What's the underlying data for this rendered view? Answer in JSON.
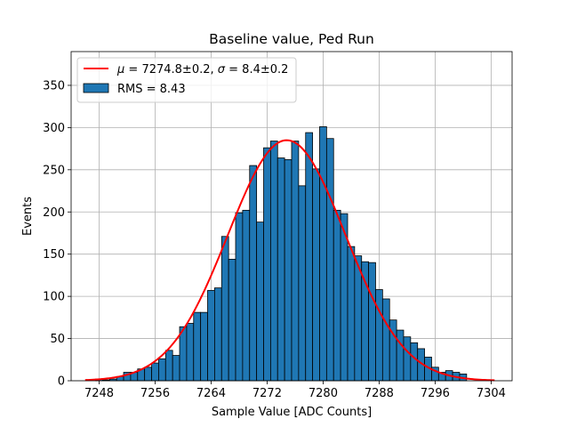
{
  "chart_data": {
    "type": "bar",
    "title": "Baseline value, Ped Run",
    "xlabel": "Sample Value [ADC Counts]",
    "ylabel": "Events",
    "xlim": [
      7244,
      7307
    ],
    "ylim": [
      0,
      390
    ],
    "xticks": [
      7248,
      7256,
      7264,
      7272,
      7280,
      7288,
      7296,
      7304
    ],
    "yticks": [
      0,
      50,
      100,
      150,
      200,
      250,
      300,
      350
    ],
    "grid": true,
    "legend_position": "top-left",
    "bin_width": 1,
    "bins": [
      {
        "x": 7248,
        "value": 2
      },
      {
        "x": 7249,
        "value": 1
      },
      {
        "x": 7250,
        "value": 2
      },
      {
        "x": 7251,
        "value": 5
      },
      {
        "x": 7252,
        "value": 10
      },
      {
        "x": 7253,
        "value": 10
      },
      {
        "x": 7254,
        "value": 14
      },
      {
        "x": 7255,
        "value": 16
      },
      {
        "x": 7256,
        "value": 21
      },
      {
        "x": 7257,
        "value": 26
      },
      {
        "x": 7258,
        "value": 36
      },
      {
        "x": 7259,
        "value": 30
      },
      {
        "x": 7260,
        "value": 64
      },
      {
        "x": 7261,
        "value": 68
      },
      {
        "x": 7262,
        "value": 81
      },
      {
        "x": 7263,
        "value": 81
      },
      {
        "x": 7264,
        "value": 107
      },
      {
        "x": 7265,
        "value": 110
      },
      {
        "x": 7266,
        "value": 171
      },
      {
        "x": 7267,
        "value": 144
      },
      {
        "x": 7268,
        "value": 199
      },
      {
        "x": 7269,
        "value": 202
      },
      {
        "x": 7270,
        "value": 255
      },
      {
        "x": 7271,
        "value": 188
      },
      {
        "x": 7272,
        "value": 276
      },
      {
        "x": 7273,
        "value": 284
      },
      {
        "x": 7274,
        "value": 264
      },
      {
        "x": 7275,
        "value": 262
      },
      {
        "x": 7276,
        "value": 284
      },
      {
        "x": 7277,
        "value": 231
      },
      {
        "x": 7278,
        "value": 294
      },
      {
        "x": 7279,
        "value": 251
      },
      {
        "x": 7280,
        "value": 301
      },
      {
        "x": 7281,
        "value": 287
      },
      {
        "x": 7282,
        "value": 202
      },
      {
        "x": 7283,
        "value": 198
      },
      {
        "x": 7284,
        "value": 159
      },
      {
        "x": 7285,
        "value": 148
      },
      {
        "x": 7286,
        "value": 141
      },
      {
        "x": 7287,
        "value": 140
      },
      {
        "x": 7288,
        "value": 108
      },
      {
        "x": 7289,
        "value": 97
      },
      {
        "x": 7290,
        "value": 72
      },
      {
        "x": 7291,
        "value": 60
      },
      {
        "x": 7292,
        "value": 52
      },
      {
        "x": 7293,
        "value": 45
      },
      {
        "x": 7294,
        "value": 38
      },
      {
        "x": 7295,
        "value": 28
      },
      {
        "x": 7296,
        "value": 16
      },
      {
        "x": 7297,
        "value": 10
      },
      {
        "x": 7298,
        "value": 12
      },
      {
        "x": 7299,
        "value": 10
      },
      {
        "x": 7300,
        "value": 8
      }
    ],
    "fit": {
      "type": "gaussian",
      "mu": 7274.8,
      "sigma": 8.4,
      "amplitude": 285,
      "x_range": [
        7246,
        7304.5
      ]
    },
    "series": [
      {
        "name": "$\\mu=7274.8\\pm0.2$, $\\sigma=8.4\\pm0.2$",
        "kind": "fit-line",
        "color": "#ff0000"
      },
      {
        "name": "RMS = 8.43",
        "kind": "histogram",
        "color": "#1f77b4",
        "edge_color": "#000000"
      }
    ]
  },
  "legend": {
    "fit_label_parts": {
      "mu_symbol": "μ",
      "mu_value": " = 7274.8±0.2, ",
      "sigma_symbol": "σ",
      "sigma_value": " = 8.4±0.2"
    },
    "hist_label": "RMS = 8.43"
  }
}
